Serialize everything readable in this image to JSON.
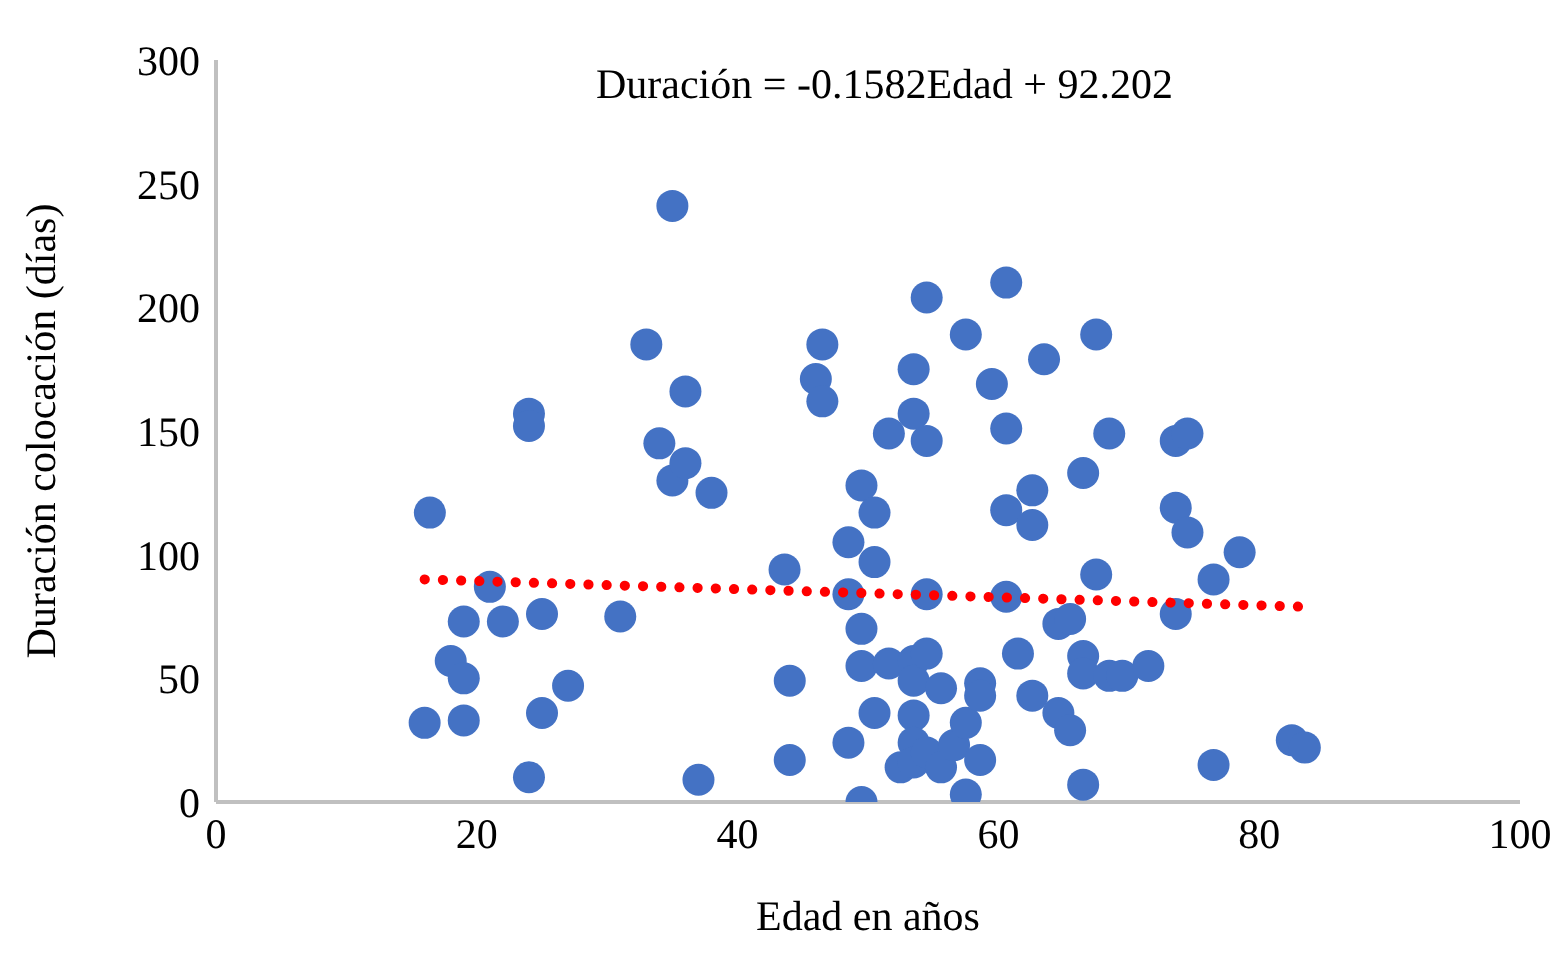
{
  "chart_data": {
    "type": "scatter",
    "xlabel": "Edad en años",
    "ylabel": "Duración colocación (días)",
    "annotations": [
      "Duración = -0.1582Edad + 92.202"
    ],
    "xlim": [
      0,
      100
    ],
    "xticks": [
      0,
      20,
      40,
      60,
      80,
      100
    ],
    "ylim": [
      0,
      300
    ],
    "yticks": [
      0,
      50,
      100,
      150,
      200,
      250,
      300
    ],
    "grid": false,
    "series": [
      {
        "color": "#4472c4",
        "marker": "circle",
        "x": [
          16.4,
          16,
          18,
          19,
          19,
          19,
          21,
          22,
          24,
          24,
          24,
          25,
          25,
          27,
          31,
          33,
          34,
          35,
          35,
          36,
          36,
          37,
          38,
          43.6,
          44,
          44,
          46,
          46.5,
          46.5,
          48.5,
          48.5,
          48.5,
          49.5,
          49.5,
          49.5,
          49.5,
          50.5,
          50.5,
          50.5,
          51.6,
          51.6,
          52.5,
          53.5,
          53.5,
          53.5,
          53.5,
          53.5,
          53.5,
          53.5,
          54.5,
          54.5,
          54.5,
          54.5,
          54.5,
          55.6,
          55.6,
          56.6,
          57.5,
          57.5,
          57.5,
          58.6,
          58.6,
          58.6,
          59.5,
          60.6,
          60.6,
          60.6,
          60.6,
          61.5,
          62.6,
          62.6,
          62.6,
          63.5,
          64.6,
          64.6,
          65.5,
          65.5,
          66.5,
          66.5,
          66.5,
          66.5,
          67.5,
          67.5,
          68.5,
          68.5,
          69.5,
          71.5,
          73.6,
          73.6,
          73.6,
          74.5,
          74.5,
          76.5,
          76.5,
          78.5,
          82.5,
          83.5
        ],
        "values": [
          117,
          32,
          57,
          50,
          73,
          33,
          87,
          73,
          157,
          152,
          10,
          76,
          36,
          47,
          75,
          185,
          145,
          241,
          130,
          166,
          137,
          9,
          125,
          94,
          49,
          17,
          171,
          185,
          162,
          105,
          84,
          24,
          128,
          70,
          55,
          0,
          117,
          97,
          36,
          149,
          56,
          14,
          175,
          157,
          57,
          49,
          35,
          24,
          16,
          204,
          146,
          84,
          60,
          20,
          46,
          14,
          23,
          189,
          32,
          3,
          48,
          43,
          17,
          169,
          210,
          151,
          118,
          83,
          60,
          126,
          112,
          43,
          179,
          72,
          36,
          74,
          29,
          133,
          59,
          52,
          7,
          189,
          92,
          149,
          51,
          51,
          55,
          146,
          119,
          76,
          149,
          109,
          90,
          15,
          101,
          25,
          22
        ]
      },
      {
        "type": "line",
        "color": "#ff0000",
        "marker": "none",
        "line_style": "dotted",
        "x": [
          16,
          83
        ],
        "values": [
          90,
          79
        ]
      }
    ]
  }
}
